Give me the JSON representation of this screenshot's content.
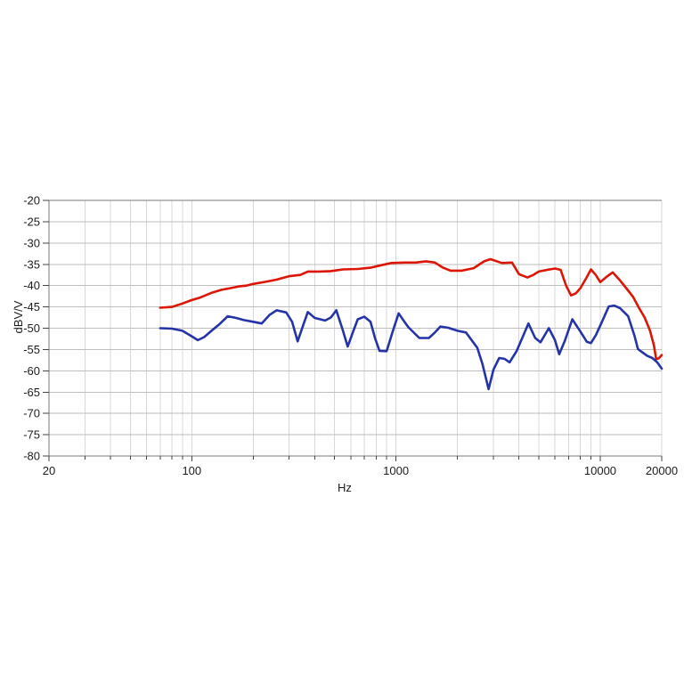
{
  "chart_data": {
    "type": "line",
    "title": "",
    "xlabel": "Hz",
    "ylabel": "dBV/V",
    "x_scale": "log",
    "x_range": [
      20,
      20000
    ],
    "y_range": [
      -80,
      -20
    ],
    "grid": true,
    "legend": "none",
    "x_ticks": [
      {
        "value": 20,
        "label": "20"
      },
      {
        "value": 100,
        "label": "100"
      },
      {
        "value": 1000,
        "label": "1000"
      },
      {
        "value": 10000,
        "label": "10000"
      },
      {
        "value": 20000,
        "label": "20000"
      }
    ],
    "x_minor_ticks": [
      30,
      40,
      50,
      60,
      70,
      80,
      90,
      200,
      300,
      400,
      500,
      600,
      700,
      800,
      900,
      2000,
      3000,
      4000,
      5000,
      6000,
      7000,
      8000,
      9000
    ],
    "y_ticks": [
      {
        "value": -20,
        "label": "-20"
      },
      {
        "value": -25,
        "label": "-25"
      },
      {
        "value": -30,
        "label": "-30"
      },
      {
        "value": -35,
        "label": "-35"
      },
      {
        "value": -40,
        "label": "-40"
      },
      {
        "value": -45,
        "label": "-45"
      },
      {
        "value": -50,
        "label": "-50"
      },
      {
        "value": -55,
        "label": "-55"
      },
      {
        "value": -60,
        "label": "-60"
      },
      {
        "value": -65,
        "label": "-65"
      },
      {
        "value": -70,
        "label": "-70"
      },
      {
        "value": -75,
        "label": "-75"
      },
      {
        "value": -80,
        "label": "-80"
      }
    ],
    "colors": {
      "red_series": "#dd1505",
      "blue_series": "#2434a8",
      "grid_horizontal": "#bdbdbd",
      "grid_vertical": "#d8d8d8",
      "axis_border": "#7a7a7a",
      "tick": "#444444",
      "text": "#1c1c1c"
    },
    "series": [
      {
        "name": "upper-red-curve",
        "color_key": "red_series",
        "points": [
          [
            70,
            -45.2
          ],
          [
            80,
            -45.0
          ],
          [
            90,
            -44.2
          ],
          [
            100,
            -43.4
          ],
          [
            110,
            -42.8
          ],
          [
            125,
            -41.7
          ],
          [
            140,
            -41.0
          ],
          [
            155,
            -40.6
          ],
          [
            170,
            -40.2
          ],
          [
            185,
            -40.0
          ],
          [
            200,
            -39.6
          ],
          [
            230,
            -39.1
          ],
          [
            260,
            -38.6
          ],
          [
            300,
            -37.8
          ],
          [
            340,
            -37.5
          ],
          [
            370,
            -36.7
          ],
          [
            420,
            -36.7
          ],
          [
            480,
            -36.6
          ],
          [
            550,
            -36.2
          ],
          [
            650,
            -36.1
          ],
          [
            750,
            -35.8
          ],
          [
            850,
            -35.2
          ],
          [
            950,
            -34.7
          ],
          [
            1100,
            -34.6
          ],
          [
            1250,
            -34.6
          ],
          [
            1400,
            -34.3
          ],
          [
            1550,
            -34.6
          ],
          [
            1700,
            -35.8
          ],
          [
            1850,
            -36.5
          ],
          [
            2100,
            -36.5
          ],
          [
            2400,
            -35.9
          ],
          [
            2700,
            -34.3
          ],
          [
            2900,
            -33.8
          ],
          [
            3300,
            -34.7
          ],
          [
            3700,
            -34.6
          ],
          [
            4000,
            -37.3
          ],
          [
            4400,
            -38.1
          ],
          [
            4700,
            -37.5
          ],
          [
            5000,
            -36.7
          ],
          [
            5500,
            -36.3
          ],
          [
            6000,
            -36.0
          ],
          [
            6400,
            -36.3
          ],
          [
            6800,
            -40.0
          ],
          [
            7200,
            -42.3
          ],
          [
            7600,
            -41.8
          ],
          [
            8000,
            -40.6
          ],
          [
            8600,
            -38.0
          ],
          [
            9000,
            -36.2
          ],
          [
            9500,
            -37.5
          ],
          [
            10000,
            -39.2
          ],
          [
            10700,
            -38.0
          ],
          [
            11500,
            -36.9
          ],
          [
            12500,
            -38.8
          ],
          [
            13500,
            -40.8
          ],
          [
            14500,
            -42.7
          ],
          [
            15500,
            -45.3
          ],
          [
            16500,
            -47.5
          ],
          [
            17500,
            -50.5
          ],
          [
            18300,
            -54.0
          ],
          [
            18800,
            -57.3
          ],
          [
            19400,
            -57.0
          ],
          [
            20000,
            -56.3
          ]
        ]
      },
      {
        "name": "lower-blue-curve",
        "color_key": "blue_series",
        "points": [
          [
            70,
            -50.0
          ],
          [
            80,
            -50.1
          ],
          [
            90,
            -50.6
          ],
          [
            100,
            -51.9
          ],
          [
            107,
            -52.8
          ],
          [
            115,
            -52.1
          ],
          [
            125,
            -50.6
          ],
          [
            137,
            -49.0
          ],
          [
            150,
            -47.2
          ],
          [
            165,
            -47.6
          ],
          [
            180,
            -48.1
          ],
          [
            200,
            -48.5
          ],
          [
            220,
            -48.9
          ],
          [
            240,
            -46.9
          ],
          [
            260,
            -45.8
          ],
          [
            290,
            -46.3
          ],
          [
            310,
            -48.5
          ],
          [
            330,
            -53.1
          ],
          [
            350,
            -49.5
          ],
          [
            370,
            -46.2
          ],
          [
            400,
            -47.6
          ],
          [
            450,
            -48.2
          ],
          [
            480,
            -47.5
          ],
          [
            510,
            -45.8
          ],
          [
            545,
            -50.0
          ],
          [
            580,
            -54.3
          ],
          [
            620,
            -50.5
          ],
          [
            650,
            -47.9
          ],
          [
            700,
            -47.3
          ],
          [
            750,
            -48.5
          ],
          [
            790,
            -52.4
          ],
          [
            830,
            -55.3
          ],
          [
            900,
            -55.4
          ],
          [
            960,
            -51.0
          ],
          [
            1030,
            -46.5
          ],
          [
            1100,
            -48.5
          ],
          [
            1150,
            -49.8
          ],
          [
            1300,
            -52.3
          ],
          [
            1450,
            -52.3
          ],
          [
            1550,
            -51.0
          ],
          [
            1650,
            -49.6
          ],
          [
            1800,
            -49.9
          ],
          [
            2000,
            -50.6
          ],
          [
            2200,
            -51.0
          ],
          [
            2500,
            -54.6
          ],
          [
            2650,
            -58.4
          ],
          [
            2840,
            -64.3
          ],
          [
            3000,
            -59.7
          ],
          [
            3200,
            -57.0
          ],
          [
            3400,
            -57.2
          ],
          [
            3600,
            -58.0
          ],
          [
            3900,
            -55.3
          ],
          [
            4200,
            -51.7
          ],
          [
            4450,
            -48.9
          ],
          [
            4800,
            -52.3
          ],
          [
            5100,
            -53.3
          ],
          [
            5600,
            -50.0
          ],
          [
            6000,
            -52.8
          ],
          [
            6300,
            -56.1
          ],
          [
            6700,
            -53.0
          ],
          [
            7300,
            -47.9
          ],
          [
            8000,
            -50.8
          ],
          [
            8600,
            -53.2
          ],
          [
            9000,
            -53.5
          ],
          [
            9500,
            -51.7
          ],
          [
            10200,
            -48.5
          ],
          [
            11000,
            -44.9
          ],
          [
            11700,
            -44.7
          ],
          [
            12500,
            -45.3
          ],
          [
            13700,
            -47.2
          ],
          [
            14700,
            -51.7
          ],
          [
            15300,
            -54.9
          ],
          [
            16000,
            -55.6
          ],
          [
            17000,
            -56.5
          ],
          [
            18000,
            -57.0
          ],
          [
            19000,
            -58.0
          ],
          [
            20000,
            -59.5
          ]
        ]
      }
    ]
  }
}
